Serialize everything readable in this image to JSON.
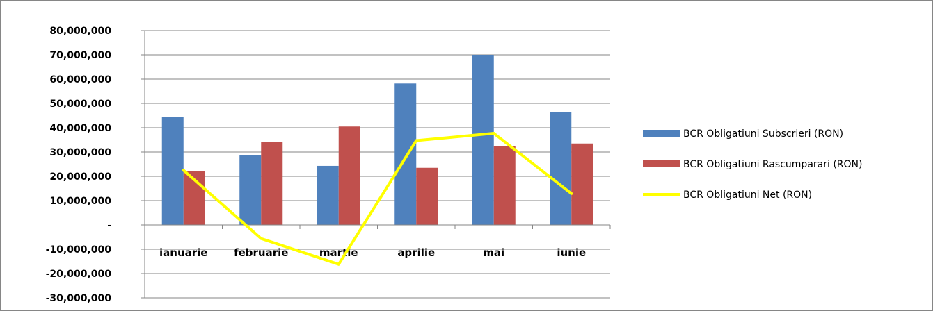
{
  "chart_data": {
    "type": "bar",
    "categories": [
      "ianuarie",
      "februarie",
      "martie",
      "aprilie",
      "mai",
      "iunie"
    ],
    "series": [
      {
        "name": "BCR Obligatiuni Subscrieri (RON)",
        "type": "bar",
        "color": "#4F81BD",
        "values": [
          44500000,
          28600000,
          24300000,
          58200000,
          70000000,
          46400000
        ]
      },
      {
        "name": "BCR Obligatiuni Rascumparari (RON)",
        "type": "bar",
        "color": "#C0504D",
        "values": [
          22000000,
          34200000,
          40500000,
          23500000,
          32300000,
          33500000
        ]
      },
      {
        "name": "BCR Obligatiuni Net (RON)",
        "type": "line",
        "color": "#FFFF00",
        "values": [
          22500000,
          -5600000,
          -16200000,
          34700000,
          37700000,
          12900000
        ]
      }
    ],
    "ylim": [
      -30000000,
      80000000
    ],
    "yticks": [
      {
        "value": 80000000,
        "label": "80,000,000"
      },
      {
        "value": 70000000,
        "label": "70,000,000"
      },
      {
        "value": 60000000,
        "label": "60,000,000"
      },
      {
        "value": 50000000,
        "label": "50,000,000"
      },
      {
        "value": 40000000,
        "label": "40,000,000"
      },
      {
        "value": 30000000,
        "label": "30,000,000"
      },
      {
        "value": 20000000,
        "label": "20,000,000"
      },
      {
        "value": 10000000,
        "label": "10,000,000"
      },
      {
        "value": 0,
        "label": "-"
      },
      {
        "value": -10000000,
        "label": "-10,000,000"
      },
      {
        "value": -20000000,
        "label": "-20,000,000"
      },
      {
        "value": -30000000,
        "label": "-30,000,000"
      }
    ],
    "grid": true,
    "legend_position": "right"
  }
}
